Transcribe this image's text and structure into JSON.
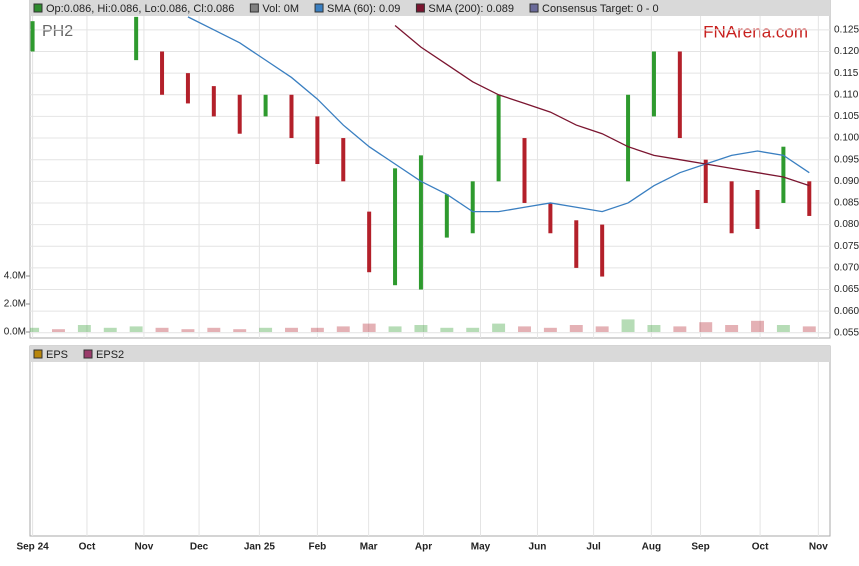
{
  "chart_data": {
    "type": "stock",
    "ticker": "PH2",
    "brand": "FNArena.com",
    "legend": [
      {
        "label": "Op:0.086, Hi:0.086, Lo:0.086, Cl:0.086",
        "color": "#2e8b2e"
      },
      {
        "label": "Vol: 0M",
        "color": "#808080"
      },
      {
        "label": "SMA (60): 0.09",
        "color": "#3a7fc1"
      },
      {
        "label": "SMA (200): 0.089",
        "color": "#7b1530"
      },
      {
        "label": "Consensus Target: 0 - 0",
        "color": "#6a6a9a"
      }
    ],
    "x": [
      0,
      1,
      2,
      3,
      4,
      5,
      6,
      7,
      8,
      9,
      10,
      11,
      12,
      13,
      14,
      15,
      16,
      17,
      18,
      19,
      20,
      21,
      22,
      23,
      24,
      25,
      26,
      27,
      28,
      29,
      30
    ],
    "xlim": [
      -0.1,
      30.8
    ],
    "xticks": [
      {
        "value": 0,
        "label": "Sep 24"
      },
      {
        "value": 2.1,
        "label": "Oct"
      },
      {
        "value": 4.3,
        "label": "Nov"
      },
      {
        "value": 6.43,
        "label": "Dec"
      },
      {
        "value": 8.76,
        "label": "Jan 25"
      },
      {
        "value": 11.0,
        "label": "Feb"
      },
      {
        "value": 12.98,
        "label": "Mar"
      },
      {
        "value": 15.1,
        "label": "Apr"
      },
      {
        "value": 17.3,
        "label": "May"
      },
      {
        "value": 19.5,
        "label": "Jun"
      },
      {
        "value": 21.67,
        "label": "Jul"
      },
      {
        "value": 23.9,
        "label": "Aug"
      },
      {
        "value": 25.8,
        "label": "Sep"
      },
      {
        "value": 28.1,
        "label": "Oct"
      },
      {
        "value": 30.35,
        "label": "Nov"
      }
    ],
    "high": [
      0.127,
      null,
      null,
      null,
      0.128,
      0.12,
      0.115,
      0.112,
      0.11,
      0.11,
      0.11,
      0.105,
      0.1,
      0.083,
      0.093,
      0.096,
      0.087,
      0.09,
      0.11,
      0.1,
      0.085,
      0.081,
      0.08,
      0.11,
      0.12,
      0.12,
      0.095,
      0.09,
      0.088,
      0.098,
      0.09
    ],
    "low": [
      0.12,
      null,
      null,
      null,
      0.118,
      0.11,
      0.108,
      0.105,
      0.101,
      0.105,
      0.1,
      0.094,
      0.09,
      0.069,
      0.066,
      0.065,
      0.077,
      0.078,
      0.09,
      0.085,
      0.078,
      0.07,
      0.068,
      0.09,
      0.105,
      0.1,
      0.085,
      0.078,
      0.079,
      0.085,
      0.082
    ],
    "up_color": "#2e9a2e",
    "down_color": "#b3202a",
    "ylim": [
      0.0538,
      0.1282
    ],
    "yticks": [
      0.055,
      {
        "value": 0.06,
        "label": "0.060"
      },
      0.065,
      {
        "value": 0.07,
        "label": "0.070"
      },
      0.075,
      {
        "value": 0.08,
        "label": "0.080"
      },
      0.085,
      {
        "value": 0.09,
        "label": "0.090"
      },
      0.095,
      {
        "value": 0.1,
        "label": "0.100"
      },
      0.105,
      {
        "value": 0.11,
        "label": "0.110"
      },
      0.115,
      {
        "value": 0.12,
        "label": "0.120"
      },
      0.125
    ],
    "series": [
      {
        "color": "#3a7fc1",
        "values": [
          null,
          null,
          null,
          null,
          null,
          null,
          0.128,
          0.125,
          0.122,
          0.118,
          0.114,
          0.109,
          0.103,
          0.098,
          0.094,
          0.09,
          0.087,
          0.083,
          0.083,
          0.084,
          0.085,
          0.084,
          0.083,
          0.085,
          0.089,
          0.092,
          0.094,
          0.096,
          0.097,
          0.096,
          0.092
        ]
      },
      {
        "color": "#7b1530",
        "values": [
          null,
          null,
          null,
          null,
          null,
          null,
          null,
          null,
          null,
          null,
          null,
          null,
          null,
          null,
          0.126,
          0.121,
          0.117,
          0.113,
          0.11,
          0.108,
          0.106,
          0.103,
          0.101,
          0.098,
          0.096,
          0.095,
          0.094,
          0.093,
          0.092,
          0.091,
          0.089
        ]
      }
    ],
    "volume": [
      0.3,
      0.2,
      0.5,
      0.3,
      0.4,
      0.3,
      0.2,
      0.3,
      0.2,
      0.3,
      0.3,
      0.3,
      0.4,
      0.6,
      0.4,
      0.5,
      0.3,
      0.3,
      0.6,
      0.4,
      0.3,
      0.5,
      0.4,
      0.9,
      0.5,
      0.4,
      0.7,
      0.5,
      0.8,
      0.5,
      0.4
    ],
    "y2lim": [
      0,
      4
    ],
    "y2ticks": [
      {
        "value": 0,
        "label": "0.0M"
      },
      {
        "value": 2,
        "label": "2.0M"
      },
      {
        "value": 4,
        "label": "4.0M"
      }
    ],
    "lower_legend": [
      {
        "label": "EPS",
        "color": "#b8860b"
      },
      {
        "label": "EPS2",
        "color": "#9b3b6b"
      }
    ],
    "grid": true
  }
}
